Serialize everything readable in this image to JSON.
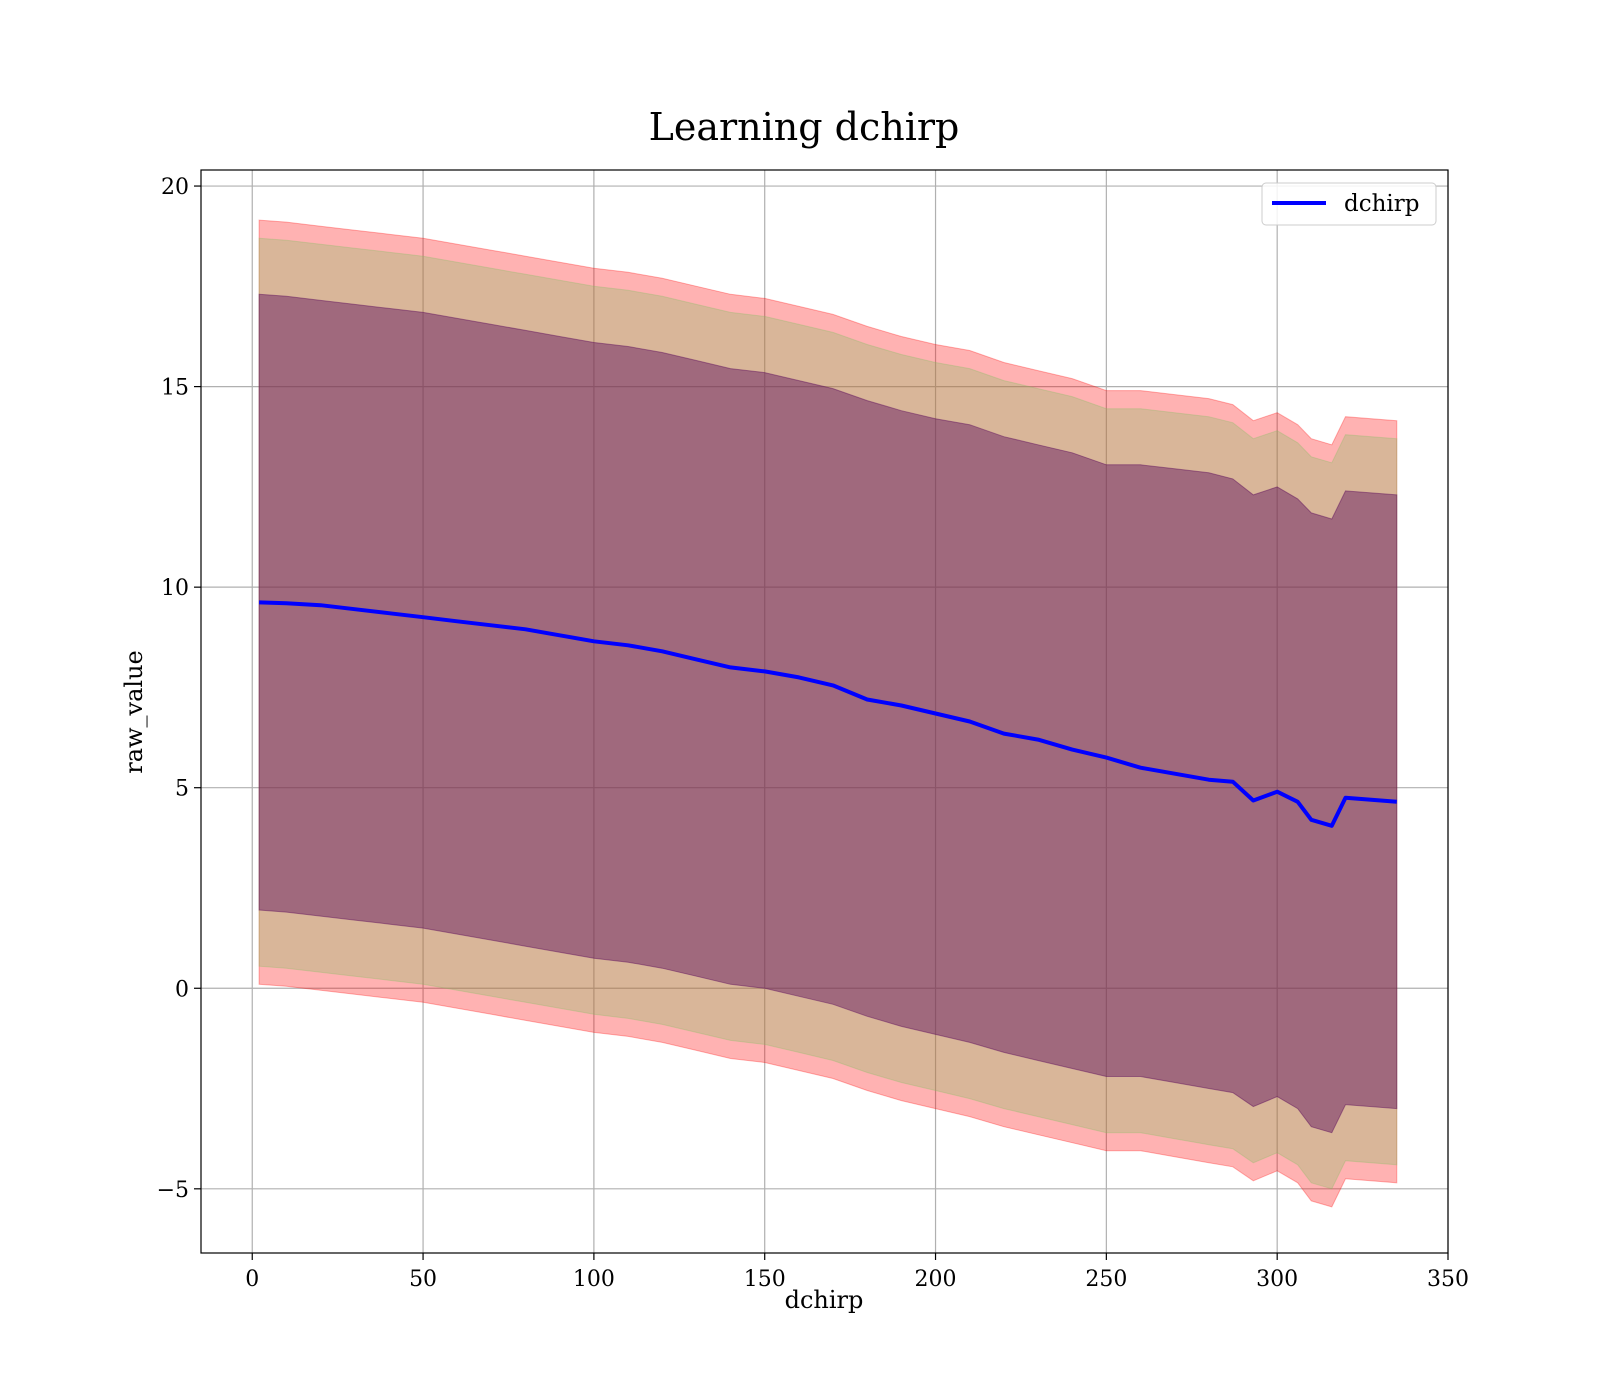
{
  "chart_data": {
    "type": "line",
    "title": "Learning dchirp",
    "xlabel": "dchirp",
    "ylabel": "raw_value",
    "xlim": [
      -15,
      350
    ],
    "ylim": [
      -6.6,
      20.4
    ],
    "xticks": [
      0,
      50,
      100,
      150,
      200,
      250,
      300,
      350
    ],
    "xtick_labels": [
      "0",
      "50",
      "100",
      "150",
      "200",
      "250",
      "300",
      "350"
    ],
    "yticks": [
      -5,
      0,
      5,
      10,
      15,
      20
    ],
    "ytick_labels": [
      "−5",
      "0",
      "5",
      "10",
      "15",
      "20"
    ],
    "grid": true,
    "legend": {
      "position": "top-right",
      "entries": [
        "dchirp"
      ]
    },
    "x": [
      2,
      10,
      20,
      30,
      40,
      50,
      60,
      70,
      80,
      90,
      100,
      110,
      120,
      130,
      140,
      150,
      160,
      170,
      180,
      190,
      200,
      210,
      220,
      230,
      240,
      250,
      260,
      270,
      280,
      287,
      293,
      300,
      306,
      310,
      316,
      320,
      335
    ],
    "series": [
      {
        "name": "dchirp",
        "color": "#0000ff",
        "values": [
          9.62,
          9.6,
          9.55,
          9.45,
          9.35,
          9.25,
          9.15,
          9.05,
          8.95,
          8.8,
          8.65,
          8.55,
          8.4,
          8.2,
          8.0,
          7.9,
          7.75,
          7.55,
          7.2,
          7.05,
          6.85,
          6.65,
          6.35,
          6.2,
          5.95,
          5.75,
          5.5,
          5.35,
          5.2,
          5.15,
          4.68,
          4.9,
          4.65,
          4.2,
          4.05,
          4.75,
          4.65
        ]
      }
    ],
    "bands": [
      {
        "color": "#ff0000",
        "opacity": 0.3,
        "upper": [
          19.15,
          19.1,
          19.0,
          18.9,
          18.8,
          18.7,
          18.55,
          18.4,
          18.25,
          18.1,
          17.95,
          17.85,
          17.7,
          17.5,
          17.3,
          17.2,
          17.0,
          16.8,
          16.5,
          16.25,
          16.05,
          15.9,
          15.6,
          15.4,
          15.2,
          14.9,
          14.9,
          14.8,
          14.7,
          14.55,
          14.15,
          14.35,
          14.05,
          13.7,
          13.55,
          14.25,
          14.15
        ],
        "lower": [
          0.1,
          0.05,
          -0.05,
          -0.15,
          -0.25,
          -0.35,
          -0.5,
          -0.65,
          -0.8,
          -0.95,
          -1.1,
          -1.2,
          -1.35,
          -1.55,
          -1.75,
          -1.85,
          -2.05,
          -2.25,
          -2.55,
          -2.8,
          -3.0,
          -3.2,
          -3.45,
          -3.65,
          -3.85,
          -4.05,
          -4.05,
          -4.2,
          -4.35,
          -4.45,
          -4.8,
          -4.55,
          -4.85,
          -5.3,
          -5.45,
          -4.75,
          -4.85
        ]
      },
      {
        "color": "#80c060",
        "opacity": 0.3,
        "upper": [
          18.7,
          18.65,
          18.55,
          18.45,
          18.35,
          18.25,
          18.1,
          17.95,
          17.8,
          17.65,
          17.5,
          17.4,
          17.25,
          17.05,
          16.85,
          16.75,
          16.55,
          16.35,
          16.05,
          15.8,
          15.6,
          15.45,
          15.15,
          14.95,
          14.75,
          14.45,
          14.45,
          14.35,
          14.25,
          14.1,
          13.7,
          13.9,
          13.6,
          13.25,
          13.1,
          13.8,
          13.7
        ],
        "lower": [
          0.55,
          0.5,
          0.4,
          0.3,
          0.2,
          0.1,
          -0.05,
          -0.2,
          -0.35,
          -0.5,
          -0.65,
          -0.75,
          -0.9,
          -1.1,
          -1.3,
          -1.4,
          -1.6,
          -1.8,
          -2.1,
          -2.35,
          -2.55,
          -2.75,
          -3.0,
          -3.2,
          -3.4,
          -3.6,
          -3.6,
          -3.75,
          -3.9,
          -4.0,
          -4.35,
          -4.1,
          -4.4,
          -4.85,
          -5.0,
          -4.3,
          -4.4
        ]
      },
      {
        "color": "#5a0a5a",
        "opacity": 0.45,
        "upper": [
          17.3,
          17.25,
          17.15,
          17.05,
          16.95,
          16.85,
          16.7,
          16.55,
          16.4,
          16.25,
          16.1,
          16.0,
          15.85,
          15.65,
          15.45,
          15.35,
          15.15,
          14.95,
          14.65,
          14.4,
          14.2,
          14.05,
          13.75,
          13.55,
          13.35,
          13.05,
          13.05,
          12.95,
          12.85,
          12.7,
          12.3,
          12.5,
          12.2,
          11.85,
          11.7,
          12.4,
          12.3
        ],
        "lower": [
          1.95,
          1.9,
          1.8,
          1.7,
          1.6,
          1.5,
          1.35,
          1.2,
          1.05,
          0.9,
          0.75,
          0.65,
          0.5,
          0.3,
          0.1,
          0.0,
          -0.2,
          -0.4,
          -0.7,
          -0.95,
          -1.15,
          -1.35,
          -1.6,
          -1.8,
          -2.0,
          -2.2,
          -2.2,
          -2.35,
          -2.5,
          -2.6,
          -2.95,
          -2.7,
          -3.0,
          -3.45,
          -3.6,
          -2.9,
          -3.0
        ]
      }
    ]
  }
}
